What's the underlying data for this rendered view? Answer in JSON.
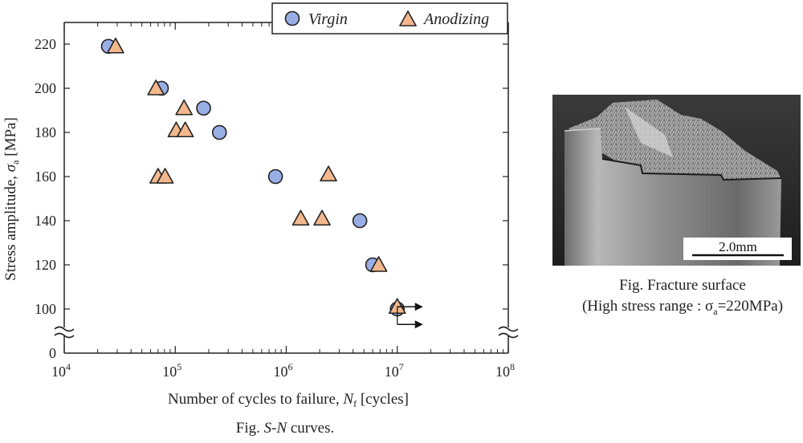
{
  "chart_data": {
    "type": "scatter",
    "caption_prefix": "Fig.",
    "caption_italic": "S-N",
    "caption_suffix": " curves.",
    "xlabel_text": "Number of cycles to failure, ",
    "xlabel_symbol": "N",
    "xlabel_sub": "f",
    "xlabel_unit": " [cycles]",
    "ylabel_text": "Stress amplitude, ",
    "ylabel_symbol": "σ",
    "ylabel_sub": "a",
    "ylabel_unit": " [MPa]",
    "x_scale": "log",
    "x_ticks": [
      {
        "value": 10000,
        "label": "10",
        "exp": "4"
      },
      {
        "value": 100000,
        "label": "10",
        "exp": "5"
      },
      {
        "value": 1000000,
        "label": "10",
        "exp": "6"
      },
      {
        "value": 10000000,
        "label": "10",
        "exp": "7"
      },
      {
        "value": 100000000,
        "label": "10",
        "exp": "8"
      }
    ],
    "xlim": [
      10000,
      100000000
    ],
    "ylim": [
      80,
      220
    ],
    "y_ticks": [
      100,
      120,
      140,
      160,
      180,
      200,
      220
    ],
    "y_zero_label": "0",
    "axis_break": true,
    "legend_position": "top-right",
    "series": [
      {
        "name": "Virgin",
        "marker": "circle",
        "color": "#9aaee6",
        "points": [
          {
            "x": 25000,
            "y": 219
          },
          {
            "x": 75000,
            "y": 200
          },
          {
            "x": 180000,
            "y": 191
          },
          {
            "x": 250000,
            "y": 180
          },
          {
            "x": 800000,
            "y": 160
          },
          {
            "x": 4600000,
            "y": 140
          },
          {
            "x": 6000000,
            "y": 120
          },
          {
            "x": 10000000,
            "y": 100
          }
        ]
      },
      {
        "name": "Anodizing",
        "marker": "triangle",
        "color": "#f4b88d",
        "points": [
          {
            "x": 29000,
            "y": 219
          },
          {
            "x": 67000,
            "y": 200
          },
          {
            "x": 120000,
            "y": 191
          },
          {
            "x": 102000,
            "y": 181
          },
          {
            "x": 123000,
            "y": 181
          },
          {
            "x": 70000,
            "y": 160
          },
          {
            "x": 81000,
            "y": 160
          },
          {
            "x": 2400000,
            "y": 161
          },
          {
            "x": 1350000,
            "y": 141
          },
          {
            "x": 2100000,
            "y": 141
          },
          {
            "x": 6800000,
            "y": 120
          },
          {
            "x": 10000000,
            "y": 101
          }
        ]
      }
    ],
    "runouts": [
      {
        "x": 10000000,
        "y": 101
      },
      {
        "x": 10000000,
        "y": 93
      }
    ]
  },
  "photo": {
    "scale_bar_label": "2.0mm",
    "caption_line1": "Fig. Fracture surface",
    "caption_line2_prefix": "(High stress range : σ",
    "caption_line2_sub": "a",
    "caption_line2_suffix": "=220MPa)"
  }
}
